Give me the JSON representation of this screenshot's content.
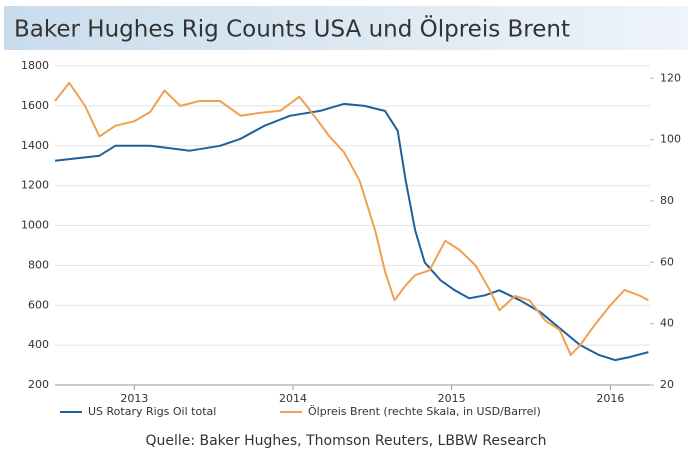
{
  "chart_data": {
    "type": "line",
    "title": "Baker Hughes Rig Counts USA und Ölpreis Brent",
    "source": "Quelle: Baker Hughes, Thomson Reuters, LBBW Research",
    "xlim": [
      2012.5,
      2016.25
    ],
    "xticks": [
      2013,
      2014,
      2015,
      2016
    ],
    "ylim": [
      200,
      1800
    ],
    "yticks": [
      200,
      400,
      600,
      800,
      1000,
      1200,
      1400,
      1600,
      1800
    ],
    "y2lim": [
      20,
      124
    ],
    "y2ticks": [
      20,
      40,
      60,
      80,
      100,
      120
    ],
    "grid": true,
    "legend": "bottom",
    "series": [
      {
        "name": "US Rotary Rigs Oil total",
        "color": "#1f5f9a",
        "x": [
          2012.5,
          2012.78,
          2012.88,
          2013.1,
          2013.35,
          2013.54,
          2013.67,
          2013.82,
          2013.98,
          2014.17,
          2014.32,
          2014.45,
          2014.58,
          2014.66,
          2014.71,
          2014.77,
          2014.83,
          2014.93,
          2015.02,
          2015.11,
          2015.21,
          2015.3,
          2015.43,
          2015.56,
          2015.68,
          2015.81,
          2015.93,
          2016.03,
          2016.12,
          2016.24
        ],
        "values": [
          1325,
          1350,
          1400,
          1400,
          1375,
          1400,
          1435,
          1500,
          1550,
          1575,
          1610,
          1600,
          1575,
          1475,
          1225,
          975,
          815,
          725,
          675,
          635,
          650,
          675,
          625,
          565,
          485,
          400,
          350,
          325,
          340,
          365
        ]
      },
      {
        "name": "Ölpreis Brent (rechte Skala, in USD/Barrel)",
        "color": "#f0a050",
        "axis": "y2",
        "x": [
          2012.5,
          2012.59,
          2012.69,
          2012.78,
          2012.88,
          2013.0,
          2013.1,
          2013.19,
          2013.29,
          2013.41,
          2013.54,
          2013.67,
          2013.79,
          2013.92,
          2014.04,
          2014.11,
          2014.23,
          2014.32,
          2014.42,
          2014.52,
          2014.58,
          2014.64,
          2014.71,
          2014.77,
          2014.86,
          2014.96,
          2015.05,
          2015.15,
          2015.24,
          2015.3,
          2015.4,
          2015.49,
          2015.59,
          2015.68,
          2015.75,
          2015.81,
          2015.9,
          2016.0,
          2016.09,
          2016.19,
          2016.24
        ],
        "values": [
          112.6,
          118.5,
          111,
          101,
          104.5,
          106,
          109,
          116,
          111,
          112.6,
          112.6,
          107.8,
          108.7,
          109.4,
          114,
          109.4,
          101,
          96,
          86.6,
          70,
          57,
          47.6,
          52.5,
          55.8,
          57.4,
          67,
          64,
          59,
          51,
          44.4,
          49,
          47.6,
          41,
          38,
          29.8,
          33,
          39.5,
          46,
          51,
          49,
          47.6
        ]
      }
    ]
  }
}
